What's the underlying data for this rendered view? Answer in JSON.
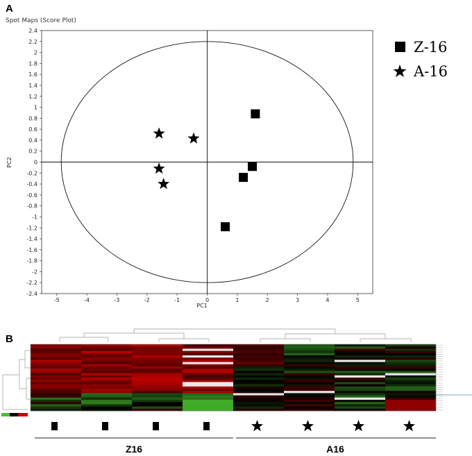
{
  "panels": {
    "a_label": "A",
    "b_label": "B"
  },
  "chart_data": [
    {
      "type": "scatter",
      "title": "Spot Maps (Score Plot)",
      "xlabel": "PC1",
      "ylabel": "PC2",
      "xlim": [
        -5.5,
        5.5
      ],
      "ylim": [
        -2.4,
        2.4
      ],
      "xticks": [
        -5,
        -4,
        -3,
        -2,
        -1,
        0,
        1,
        2,
        3,
        4,
        5
      ],
      "yticks": [
        2.4,
        2.2,
        2,
        1.8,
        1.6,
        1.4,
        1.2,
        1,
        0.8,
        0.6,
        0.4,
        0.2,
        0,
        -0.2,
        -0.4,
        -0.6,
        -0.8,
        -1,
        -1.2,
        -1.4,
        -1.6,
        -1.8,
        -2,
        -2.2,
        -2.4
      ],
      "ellipse": {
        "cx": 0,
        "cy": 0,
        "rx": 4.85,
        "ry": 2.2
      },
      "legend_position": "right",
      "series": [
        {
          "name": "Z-16",
          "marker": "square",
          "points": [
            [
              1.6,
              0.88
            ],
            [
              1.5,
              -0.08
            ],
            [
              1.2,
              -0.28
            ],
            [
              0.6,
              -1.18
            ]
          ]
        },
        {
          "name": "A-16",
          "marker": "star",
          "points": [
            [
              -1.6,
              0.52
            ],
            [
              -0.45,
              0.43
            ],
            [
              -1.6,
              -0.12
            ],
            [
              -1.45,
              -0.4
            ]
          ]
        }
      ]
    },
    {
      "type": "heatmap",
      "columns_per_group": 4,
      "groups": [
        "Z16",
        "A16"
      ],
      "group_markers": [
        "square",
        "star"
      ],
      "colors": {
        "high": "#c00000",
        "low": "#44c030",
        "mid": "#000000",
        "missing": "#e8e8e8"
      },
      "rows": 30,
      "cols": 8
    }
  ]
}
